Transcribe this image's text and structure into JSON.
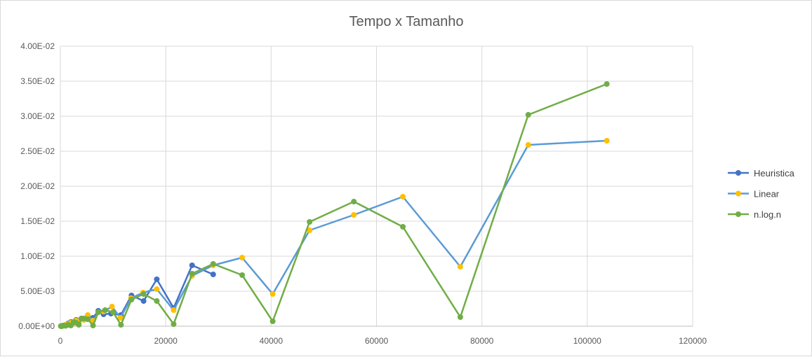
{
  "chart_data": {
    "type": "line",
    "title": "Tempo x Tamanho",
    "xlabel": "",
    "ylabel": "",
    "xlim": [
      0,
      120000
    ],
    "ylim": [
      0,
      0.04
    ],
    "x_ticks": [
      0,
      20000,
      40000,
      60000,
      80000,
      100000,
      120000
    ],
    "x_tick_labels": [
      "0",
      "20000",
      "40000",
      "60000",
      "80000",
      "100000",
      "120000"
    ],
    "y_ticks": [
      0,
      0.005,
      0.01,
      0.015,
      0.02,
      0.025,
      0.03,
      0.035,
      0.04
    ],
    "y_tick_labels": [
      "0.00E+00",
      "5.00E-03",
      "1.00E-02",
      "1.50E-02",
      "2.00E-02",
      "2.50E-02",
      "3.00E-02",
      "3.50E-02",
      "4.00E-02"
    ],
    "grid": "vertical and horizontal",
    "legend_position": "right",
    "series": [
      {
        "name": "Heuristica",
        "line_color": "#4472c4",
        "marker_color": "#4472c4",
        "points": [
          [
            100,
            2e-05
          ],
          [
            300,
            5e-05
          ],
          [
            600,
            0.0001
          ],
          [
            1000,
            0.0002
          ],
          [
            1500,
            0.0004
          ],
          [
            2000,
            0.0006
          ],
          [
            2500,
            0.0005
          ],
          [
            3000,
            0.0009
          ],
          [
            3500,
            0.0007
          ],
          [
            4000,
            0.0011
          ],
          [
            4500,
            0.001
          ],
          [
            5200,
            0.0015
          ],
          [
            6200,
            0.0012
          ],
          [
            7200,
            0.0022
          ],
          [
            8200,
            0.0017
          ],
          [
            9600,
            0.0018
          ],
          [
            11500,
            0.0016
          ],
          [
            13500,
            0.0044
          ],
          [
            15800,
            0.0036
          ],
          [
            18300,
            0.0067
          ],
          [
            21500,
            0.0026
          ],
          [
            25000,
            0.0087
          ],
          [
            29000,
            0.0074
          ]
        ]
      },
      {
        "name": "Linear",
        "line_color": "#5b9bd5",
        "marker_color": "#ffc000",
        "points": [
          [
            100,
            1e-05
          ],
          [
            300,
            3e-05
          ],
          [
            600,
            0.0001
          ],
          [
            1000,
            0.0002
          ],
          [
            1500,
            0.0003
          ],
          [
            2000,
            0.0005
          ],
          [
            2500,
            0.0004
          ],
          [
            3000,
            0.0008
          ],
          [
            3500,
            0.0006
          ],
          [
            4000,
            0.001
          ],
          [
            4500,
            0.0009
          ],
          [
            5200,
            0.0016
          ],
          [
            6200,
            0.0008
          ],
          [
            7200,
            0.002
          ],
          [
            8200,
            0.0021
          ],
          [
            9800,
            0.0028
          ],
          [
            11400,
            0.0012
          ],
          [
            13400,
            0.004
          ],
          [
            15700,
            0.0048
          ],
          [
            18300,
            0.0053
          ],
          [
            21500,
            0.0023
          ],
          [
            25000,
            0.0072
          ],
          [
            29000,
            0.0087
          ],
          [
            34500,
            0.0098
          ],
          [
            40300,
            0.0046
          ],
          [
            47300,
            0.0137
          ],
          [
            55700,
            0.0159
          ],
          [
            65000,
            0.0185
          ],
          [
            75900,
            0.0085
          ],
          [
            88800,
            0.0259
          ],
          [
            103700,
            0.0265
          ]
        ]
      },
      {
        "name": "n.log.n",
        "line_color": "#70ad47",
        "marker_color": "#70ad47",
        "points": [
          [
            100,
            0.0
          ],
          [
            300,
            0.0
          ],
          [
            600,
            0.0001
          ],
          [
            1000,
            5e-05
          ],
          [
            1500,
            0.0002
          ],
          [
            2000,
            0.0001
          ],
          [
            2500,
            0.0006
          ],
          [
            3000,
            0.0005
          ],
          [
            3500,
            0.0002
          ],
          [
            4000,
            0.0011
          ],
          [
            4500,
            0.0011
          ],
          [
            5200,
            0.001
          ],
          [
            6200,
            0.0001
          ],
          [
            7200,
            0.002
          ],
          [
            8500,
            0.0023
          ],
          [
            10000,
            0.002
          ],
          [
            11500,
            0.0002
          ],
          [
            13500,
            0.0038
          ],
          [
            15800,
            0.0046
          ],
          [
            18300,
            0.0036
          ],
          [
            21500,
            0.0003
          ],
          [
            25000,
            0.0075
          ],
          [
            29000,
            0.0089
          ],
          [
            34500,
            0.0073
          ],
          [
            40300,
            0.0007
          ],
          [
            47300,
            0.0149
          ],
          [
            55700,
            0.0178
          ],
          [
            65000,
            0.0142
          ],
          [
            75900,
            0.0013
          ],
          [
            88800,
            0.0302
          ],
          [
            103700,
            0.0346
          ]
        ]
      }
    ]
  }
}
